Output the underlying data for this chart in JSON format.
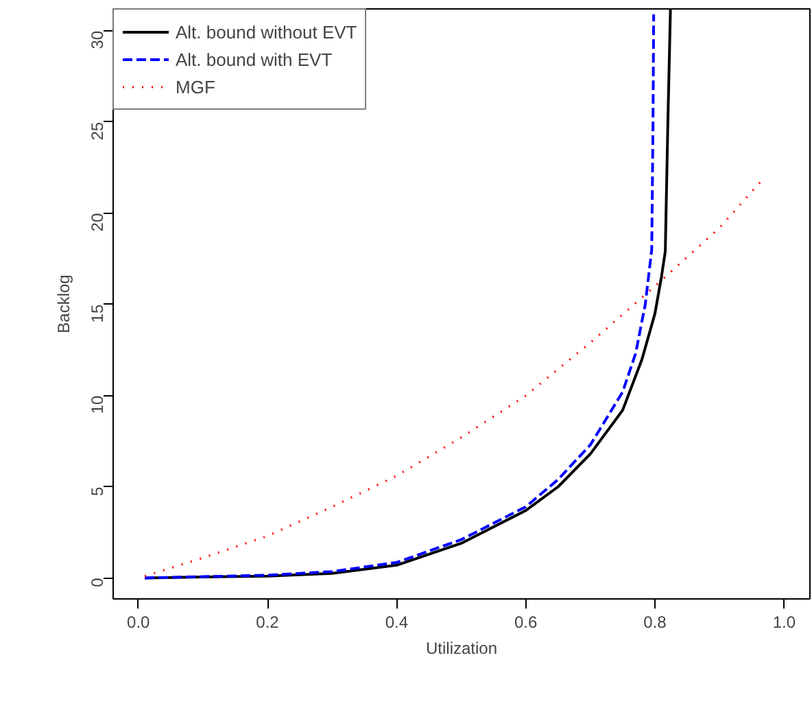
{
  "chart_data": {
    "type": "line",
    "xlabel": "Utilization",
    "ylabel": "Backlog",
    "xlim": [
      -0.039,
      1.04
    ],
    "ylim": [
      -1.15,
      31.2
    ],
    "xticks": [
      {
        "value": 0,
        "label": "0.0"
      },
      0.2,
      0.4,
      0.6,
      0.8,
      {
        "value": 1,
        "label": "1.0"
      }
    ],
    "yticks": [
      0,
      5,
      10,
      15,
      20,
      25,
      30
    ],
    "grid": false,
    "legend": "top left",
    "marker": "none",
    "series": [
      {
        "name": "Alt. bound without EVT",
        "color": "#000000",
        "line_style": "solid",
        "x": [
          0.01,
          0.1,
          0.2,
          0.3,
          0.4,
          0.5,
          0.6,
          0.65,
          0.7,
          0.75,
          0.78,
          0.8,
          0.81,
          0.816,
          0.82,
          0.824
        ],
        "values": [
          0,
          0.05,
          0.1,
          0.25,
          0.7,
          1.9,
          3.7,
          5.0,
          6.8,
          9.2,
          12,
          14.5,
          16.5,
          17.9,
          25,
          31.2
        ]
      },
      {
        "name": "Alt. bound with EVT",
        "color": "#0000ff",
        "line_style": "dashed",
        "x": [
          0.01,
          0.1,
          0.2,
          0.3,
          0.4,
          0.5,
          0.6,
          0.65,
          0.7,
          0.75,
          0.77,
          0.785,
          0.795,
          0.797,
          0.798
        ],
        "values": [
          0,
          0.07,
          0.15,
          0.35,
          0.85,
          2.1,
          3.9,
          5.4,
          7.3,
          10.2,
          12.3,
          15,
          18,
          25,
          30.9
        ]
      },
      {
        "name": "MGF",
        "color": "#ff0000",
        "line_style": "dotted",
        "x": [
          0.01,
          0.1,
          0.2,
          0.3,
          0.4,
          0.5,
          0.6,
          0.7,
          0.8,
          0.9,
          0.963
        ],
        "values": [
          0.1,
          1.1,
          2.3,
          3.9,
          5.6,
          7.7,
          10,
          12.9,
          16,
          19.2,
          21.7
        ]
      }
    ]
  }
}
